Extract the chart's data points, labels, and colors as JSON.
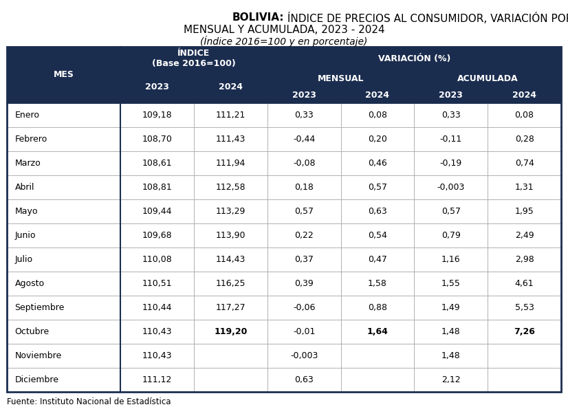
{
  "title_bold": "BOLIVIA:",
  "title_rest": " ÍNDICE DE PRECIOS AL CONSUMIDOR, VARIACIÓN PORCENTUAL",
  "title_line2": "MENSUAL Y ACUMULADA, 2023 - 2024",
  "title_line3": "(Índice 2016=100 y en porcentaje)",
  "header_bg": "#1b2d4f",
  "header_text": "#ffffff",
  "body_bg": "#ffffff",
  "body_text": "#000000",
  "border_dark": "#1b2d4f",
  "border_light": "#aaaaaa",
  "source": "Fuente: Instituto Nacional de Estadística",
  "months": [
    "Enero",
    "Febrero",
    "Marzo",
    "Abril",
    "Mayo",
    "Junio",
    "Julio",
    "Agosto",
    "Septiembre",
    "Octubre",
    "Noviembre",
    "Diciembre"
  ],
  "indice_2023": [
    "109,18",
    "108,70",
    "108,61",
    "108,81",
    "109,44",
    "109,68",
    "110,08",
    "110,51",
    "110,44",
    "110,43",
    "110,43",
    "111,12"
  ],
  "indice_2024": [
    "111,21",
    "111,43",
    "111,94",
    "112,58",
    "113,29",
    "113,90",
    "114,43",
    "116,25",
    "117,27",
    "119,20",
    "",
    ""
  ],
  "mensual_2023": [
    "0,33",
    "-0,44",
    "-0,08",
    "0,18",
    "0,57",
    "0,22",
    "0,37",
    "0,39",
    "-0,06",
    "-0,01",
    "-0,003",
    "0,63"
  ],
  "mensual_2024": [
    "0,08",
    "0,20",
    "0,46",
    "0,57",
    "0,63",
    "0,54",
    "0,47",
    "1,58",
    "0,88",
    "1,64",
    "",
    ""
  ],
  "acumulada_2023": [
    "0,33",
    "-0,11",
    "-0,19",
    "-0,003",
    "0,57",
    "0,79",
    "1,16",
    "1,55",
    "1,49",
    "1,48",
    "1,48",
    "2,12"
  ],
  "acumulada_2024": [
    "0,08",
    "0,28",
    "0,74",
    "1,31",
    "1,95",
    "2,49",
    "2,98",
    "4,61",
    "5,53",
    "7,26",
    "",
    ""
  ],
  "bold_row": 9,
  "col_widths_rel": [
    1.7,
    1.1,
    1.1,
    1.1,
    1.1,
    1.1,
    1.1
  ],
  "title_fontsize": 11,
  "header_fontsize": 9,
  "data_fontsize": 9
}
